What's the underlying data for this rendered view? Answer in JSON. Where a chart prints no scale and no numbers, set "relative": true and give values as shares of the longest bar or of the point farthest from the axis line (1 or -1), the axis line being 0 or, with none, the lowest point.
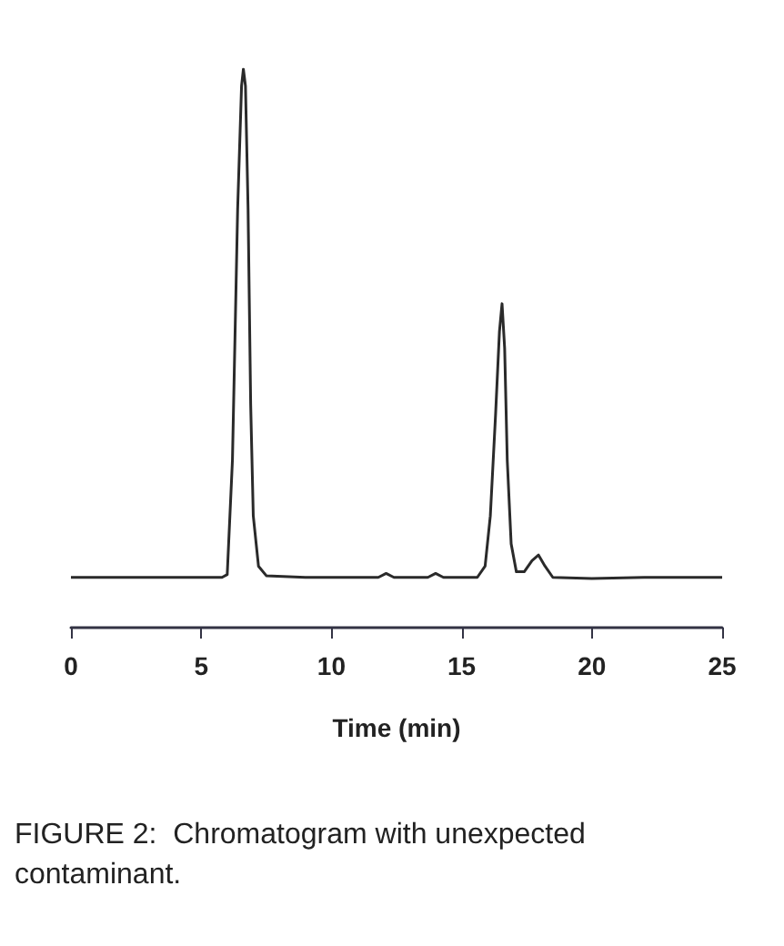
{
  "chart_data": {
    "type": "line",
    "relative": true,
    "xlabel": "Time (min)",
    "annotations": [
      "FIGURE 2:  Chromatogram with unexpected contaminant."
    ],
    "xlim": [
      0,
      25
    ],
    "xticks": [
      0,
      5,
      10,
      15,
      20,
      25
    ],
    "grid": false,
    "marker": "none",
    "line_style": "solid",
    "series": [
      {
        "color": "#2a2a2a",
        "x": [
          0,
          2,
          4,
          5.8,
          6.0,
          6.2,
          6.4,
          6.55,
          6.62,
          6.7,
          6.8,
          6.9,
          7.0,
          7.2,
          7.5,
          9,
          11.8,
          12.1,
          12.4,
          13.7,
          14.0,
          14.3,
          15.6,
          15.9,
          16.1,
          16.3,
          16.45,
          16.55,
          16.65,
          16.75,
          16.9,
          17.1,
          17.4,
          17.7,
          17.95,
          18.2,
          18.5,
          20,
          22,
          25
        ],
        "values": [
          0.09,
          0.09,
          0.09,
          0.09,
          0.095,
          0.3,
          0.75,
          0.97,
          1.0,
          0.97,
          0.75,
          0.4,
          0.2,
          0.11,
          0.093,
          0.09,
          0.09,
          0.097,
          0.09,
          0.09,
          0.097,
          0.09,
          0.09,
          0.11,
          0.2,
          0.38,
          0.53,
          0.58,
          0.5,
          0.3,
          0.15,
          0.1,
          0.1,
          0.12,
          0.13,
          0.11,
          0.09,
          0.088,
          0.09,
          0.09
        ]
      }
    ]
  }
}
